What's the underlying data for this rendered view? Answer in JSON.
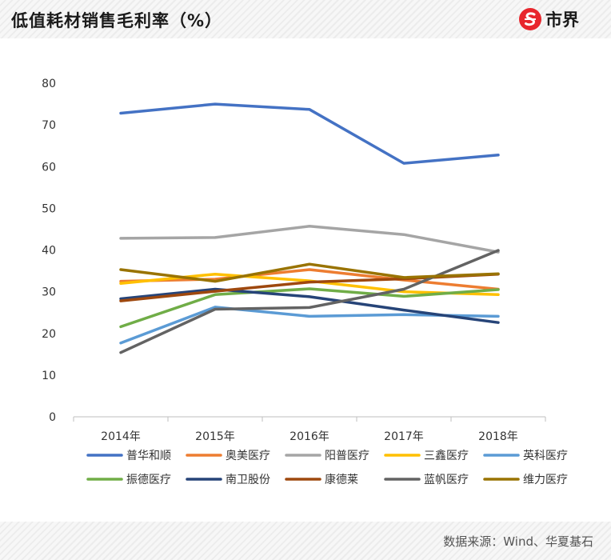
{
  "header": {
    "title": "低值耗材销售毛利率（%）",
    "logo_text": "市界",
    "logo_icon": "s-circle-icon",
    "logo_color": "#e8262d"
  },
  "footer": {
    "source": "数据来源：Wind、华夏基石"
  },
  "chart_data": {
    "type": "line",
    "title": "低值耗材销售毛利率（%）",
    "xlabel": "",
    "ylabel": "",
    "categories": [
      "2014年",
      "2015年",
      "2016年",
      "2017年",
      "2018年"
    ],
    "ylim": [
      0,
      80
    ],
    "yticks": [
      0,
      10,
      20,
      30,
      40,
      50,
      60,
      70,
      80
    ],
    "grid": false,
    "legend_position": "bottom",
    "series": [
      {
        "name": "普华和顺",
        "color": "#4472c4",
        "values": [
          72.8,
          75.0,
          73.7,
          60.8,
          62.8
        ]
      },
      {
        "name": "奥美医疗",
        "color": "#ed7d31",
        "values": [
          32.5,
          33.0,
          35.3,
          32.8,
          30.6
        ]
      },
      {
        "name": "阳普医疗",
        "color": "#a5a5a5",
        "values": [
          42.8,
          43.0,
          45.7,
          43.7,
          39.5
        ]
      },
      {
        "name": "三鑫医疗",
        "color": "#ffc000",
        "values": [
          32.0,
          34.2,
          32.6,
          30.0,
          29.3
        ]
      },
      {
        "name": "英科医疗",
        "color": "#5b9bd5",
        "values": [
          17.7,
          26.3,
          24.1,
          24.5,
          24.1
        ]
      },
      {
        "name": "振德医疗",
        "color": "#70ad47",
        "values": [
          21.6,
          29.3,
          30.7,
          28.9,
          30.5
        ]
      },
      {
        "name": "南卫股份",
        "color": "#264478",
        "values": [
          28.3,
          30.6,
          28.8,
          25.6,
          22.6
        ]
      },
      {
        "name": "康德莱",
        "color": "#9e480e",
        "values": [
          27.8,
          30.1,
          32.3,
          33.1,
          34.2
        ]
      },
      {
        "name": "蓝帆医疗",
        "color": "#636363",
        "values": [
          15.4,
          25.8,
          26.2,
          30.6,
          39.9
        ]
      },
      {
        "name": "维力医疗",
        "color": "#997300",
        "values": [
          35.3,
          32.5,
          36.6,
          33.4,
          34.3
        ]
      }
    ]
  }
}
